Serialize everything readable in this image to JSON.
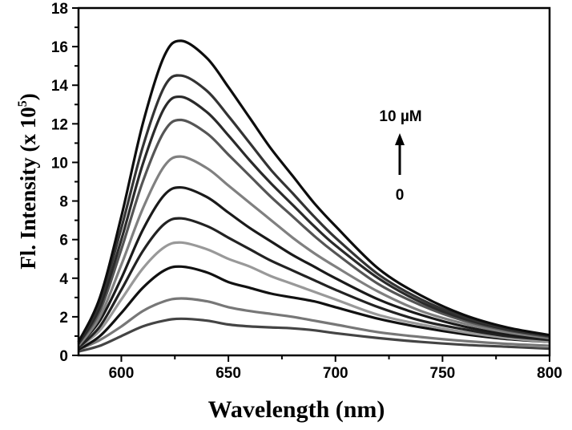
{
  "chart_data": {
    "type": "line",
    "title": "",
    "xlabel": "Wavelength (nm)",
    "ylabel_main": "Fl. Intensity (x 10",
    "ylabel_exp": "5",
    "ylabel_close": ")",
    "xlim": [
      580,
      800
    ],
    "ylim": [
      0,
      18
    ],
    "xticks": [
      600,
      650,
      700,
      750,
      800
    ],
    "yticks": [
      0,
      2,
      4,
      6,
      8,
      10,
      12,
      14,
      16,
      18
    ],
    "grid": false,
    "legend": "none",
    "annotations": {
      "top_label": "10 µM",
      "bottom_label": "0",
      "arrow": "up"
    },
    "x": [
      580,
      590,
      600,
      610,
      620,
      628,
      640,
      650,
      660,
      670,
      680,
      690,
      700,
      720,
      740,
      760,
      780,
      800
    ],
    "series": [
      {
        "color": "#444444",
        "values": [
          0.2,
          0.5,
          1.0,
          1.5,
          1.8,
          1.9,
          1.8,
          1.6,
          1.5,
          1.45,
          1.4,
          1.3,
          1.15,
          0.9,
          0.7,
          0.55,
          0.45,
          0.35
        ]
      },
      {
        "color": "#777777",
        "values": [
          0.3,
          0.8,
          1.5,
          2.3,
          2.8,
          2.95,
          2.8,
          2.5,
          2.3,
          2.15,
          2.0,
          1.8,
          1.6,
          1.2,
          0.95,
          0.75,
          0.6,
          0.5
        ]
      },
      {
        "color": "#111111",
        "values": [
          0.3,
          1.0,
          2.2,
          3.5,
          4.4,
          4.6,
          4.3,
          3.8,
          3.5,
          3.2,
          3.0,
          2.8,
          2.5,
          1.9,
          1.45,
          1.1,
          0.85,
          0.7
        ]
      },
      {
        "color": "#999999",
        "values": [
          0.4,
          1.3,
          2.9,
          4.5,
          5.6,
          5.85,
          5.5,
          5.0,
          4.6,
          4.1,
          3.7,
          3.3,
          2.9,
          2.1,
          1.6,
          1.2,
          0.9,
          0.7
        ]
      },
      {
        "color": "#222222",
        "values": [
          0.4,
          1.5,
          3.4,
          5.4,
          6.8,
          7.1,
          6.7,
          6.1,
          5.5,
          4.9,
          4.4,
          3.9,
          3.4,
          2.5,
          1.8,
          1.35,
          1.0,
          0.8
        ]
      },
      {
        "color": "#1a1a1a",
        "values": [
          0.5,
          1.8,
          4.0,
          6.5,
          8.3,
          8.7,
          8.2,
          7.4,
          6.6,
          5.9,
          5.2,
          4.6,
          4.0,
          2.9,
          2.1,
          1.5,
          1.1,
          0.85
        ]
      },
      {
        "color": "#808080",
        "values": [
          0.5,
          2.0,
          4.7,
          7.6,
          9.8,
          10.3,
          9.7,
          8.8,
          7.9,
          7.0,
          6.1,
          5.3,
          4.6,
          3.3,
          2.3,
          1.65,
          1.2,
          0.9
        ]
      },
      {
        "color": "#555555",
        "values": [
          0.6,
          2.3,
          5.5,
          9.0,
          11.6,
          12.2,
          11.5,
          10.4,
          9.3,
          8.2,
          7.2,
          6.2,
          5.3,
          3.7,
          2.6,
          1.8,
          1.3,
          0.95
        ]
      },
      {
        "color": "#2a2a2a",
        "values": [
          0.6,
          2.5,
          6.0,
          9.9,
          12.8,
          13.4,
          12.6,
          11.4,
          10.1,
          8.9,
          7.8,
          6.7,
          5.7,
          4.0,
          2.75,
          1.9,
          1.35,
          1.0
        ]
      },
      {
        "color": "#333333",
        "values": [
          0.7,
          2.8,
          6.6,
          10.8,
          13.9,
          14.5,
          13.7,
          12.4,
          11.0,
          9.6,
          8.4,
          7.2,
          6.1,
          4.2,
          2.9,
          2.0,
          1.4,
          1.0
        ]
      },
      {
        "color": "#0d0d0d",
        "values": [
          0.7,
          3.0,
          7.2,
          12.0,
          15.5,
          16.3,
          15.4,
          13.9,
          12.3,
          10.7,
          9.3,
          7.9,
          6.7,
          4.5,
          3.1,
          2.1,
          1.45,
          1.05
        ]
      }
    ]
  }
}
